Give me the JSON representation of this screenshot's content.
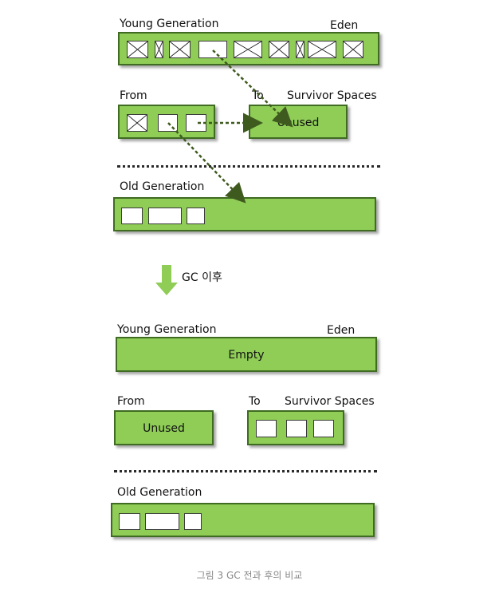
{
  "before": {
    "young_label": "Young Generation",
    "eden_label": "Eden",
    "from_label": "From",
    "to_label": "To",
    "survivor_label": "Survivor Spaces",
    "to_box_text": "Unused",
    "old_label": "Old Generation"
  },
  "transition_label": "GC 이후",
  "after": {
    "young_label": "Young Generation",
    "eden_label": "Eden",
    "eden_box_text": "Empty",
    "from_label": "From",
    "from_box_text": "Unused",
    "to_label": "To",
    "survivor_label": "Survivor Spaces",
    "old_label": "Old Generation"
  },
  "caption": "그림 3 GC 전과 후의 비교",
  "colors": {
    "box_fill": "#8fcd57",
    "box_border": "#3f6b22",
    "arrow": "#3f5a1e",
    "down_arrow": "#8fcd57"
  }
}
